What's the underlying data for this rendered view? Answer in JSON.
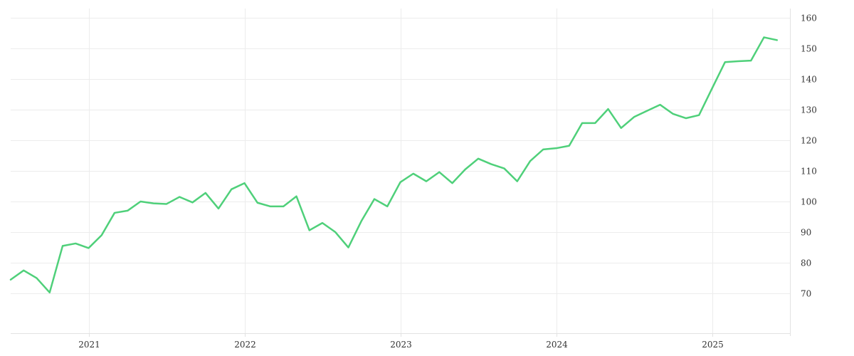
{
  "chart_data": {
    "type": "line",
    "title": "",
    "xlabel": "",
    "ylabel": "",
    "x_ticks": [
      "2021",
      "2022",
      "2023",
      "2024",
      "2025"
    ],
    "y_ticks": [
      70,
      80,
      90,
      100,
      110,
      120,
      130,
      140,
      150,
      160
    ],
    "xlim": [
      "2020-07",
      "2025-07"
    ],
    "ylim": [
      57,
      163
    ],
    "grid": true,
    "y_axis_position": "right",
    "series": [
      {
        "color": "#4fd07a",
        "points": [
          [
            "2020-07",
            74.5
          ],
          [
            "2020-08",
            77.5
          ],
          [
            "2020-09",
            75.0
          ],
          [
            "2020-10",
            70.3
          ],
          [
            "2020-11",
            85.5
          ],
          [
            "2020-12",
            86.3
          ],
          [
            "2021-01",
            84.8
          ],
          [
            "2021-02",
            89.0
          ],
          [
            "2021-03",
            96.3
          ],
          [
            "2021-04",
            97.0
          ],
          [
            "2021-05",
            100.0
          ],
          [
            "2021-06",
            99.4
          ],
          [
            "2021-07",
            99.2
          ],
          [
            "2021-08",
            101.5
          ],
          [
            "2021-09",
            99.7
          ],
          [
            "2021-10",
            102.8
          ],
          [
            "2021-11",
            97.7
          ],
          [
            "2021-12",
            104.0
          ],
          [
            "2022-01",
            106.0
          ],
          [
            "2022-02",
            99.6
          ],
          [
            "2022-03",
            98.4
          ],
          [
            "2022-04",
            98.4
          ],
          [
            "2022-05",
            101.7
          ],
          [
            "2022-06",
            90.6
          ],
          [
            "2022-07",
            93.0
          ],
          [
            "2022-08",
            90.0
          ],
          [
            "2022-09",
            85.0
          ],
          [
            "2022-10",
            93.6
          ],
          [
            "2022-11",
            100.8
          ],
          [
            "2022-12",
            98.4
          ],
          [
            "2023-01",
            106.3
          ],
          [
            "2023-02",
            109.1
          ],
          [
            "2023-03",
            106.6
          ],
          [
            "2023-04",
            109.6
          ],
          [
            "2023-05",
            106.0
          ],
          [
            "2023-06",
            110.5
          ],
          [
            "2023-07",
            114.0
          ],
          [
            "2023-08",
            112.2
          ],
          [
            "2023-09",
            110.8
          ],
          [
            "2023-10",
            106.6
          ],
          [
            "2023-11",
            113.2
          ],
          [
            "2023-12",
            117.0
          ],
          [
            "2024-01",
            117.4
          ],
          [
            "2024-02",
            118.2
          ],
          [
            "2024-03",
            125.6
          ],
          [
            "2024-04",
            125.6
          ],
          [
            "2024-05",
            130.2
          ],
          [
            "2024-06",
            124.0
          ],
          [
            "2024-07",
            127.6
          ],
          [
            "2024-08",
            129.6
          ],
          [
            "2024-09",
            131.6
          ],
          [
            "2024-10",
            128.6
          ],
          [
            "2024-11",
            127.2
          ],
          [
            "2024-12",
            128.2
          ],
          [
            "2025-01",
            136.9
          ],
          [
            "2025-02",
            145.5
          ],
          [
            "2025-03",
            145.8
          ],
          [
            "2025-04",
            146.0
          ],
          [
            "2025-05",
            153.6
          ],
          [
            "2025-06",
            152.7
          ]
        ]
      }
    ]
  }
}
